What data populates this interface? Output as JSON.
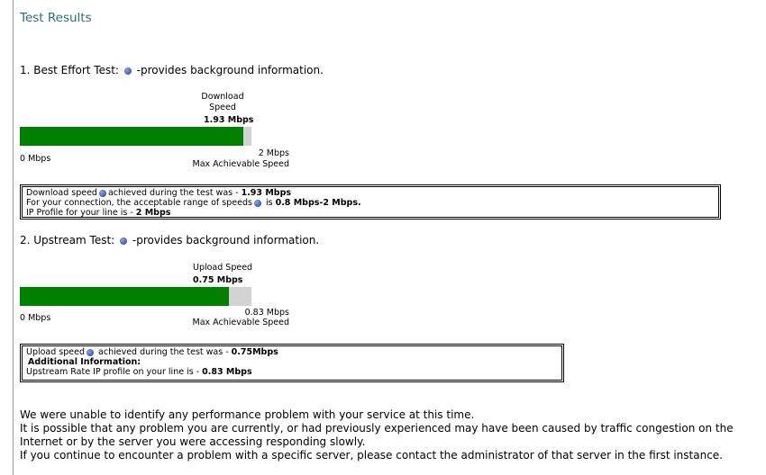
{
  "header": {
    "title": "Test Results"
  },
  "sections": [
    {
      "heading": "1. Best Effort Test:",
      "info": "-provides background information.",
      "gauge": {
        "label": "Download Speed",
        "value": 1.93,
        "value_label": "1.93 Mbps",
        "min": 0,
        "min_label": "0 Mbps",
        "max": 2,
        "max_label": "2 Mbps",
        "max_caption": "Max Achievable Speed",
        "color": "#008000"
      },
      "summary": [
        [
          "Download speed",
          "achieved during the test was - ",
          "1.93 Mbps"
        ],
        [
          "For your connection, the acceptable range of speeds",
          " is ",
          "0.8 Mbps-2 Mbps."
        ],
        [
          "IP Profile for your line is - ",
          "2 Mbps"
        ]
      ]
    },
    {
      "heading": "2. Upstream Test:",
      "info": "-provides background information.",
      "gauge": {
        "label": "Upload Speed",
        "value": 0.75,
        "value_label": "0.75 Mbps",
        "min": 0,
        "min_label": "0 Mbps",
        "max": 0.83,
        "max_label": "0.83 Mbps",
        "max_caption": "Max Achievable Speed",
        "color": "#008000"
      },
      "summary": [
        [
          "Upload speed",
          " achieved during the test was - ",
          "0.75Mbps"
        ],
        [
          "Additional Information:"
        ],
        [
          "Upstream Rate IP profile on your line is - ",
          "0.83 Mbps"
        ]
      ]
    }
  ],
  "footer": [
    "We were unable to identify any performance problem with your service at this time.",
    "It is possible that any problem you are currently, or had previously experienced may have been caused by traffic congestion on the",
    "Internet or by the server you were accessing responding slowly.",
    "If you continue to encounter a problem with a specific server, please contact the administrator of that server in the first instance."
  ]
}
